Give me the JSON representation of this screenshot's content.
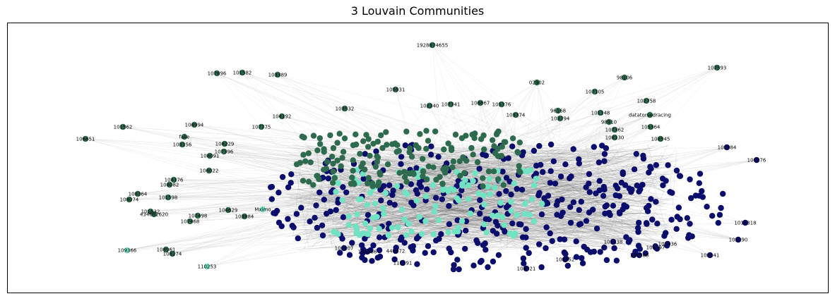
{
  "chart_data": {
    "type": "network",
    "title": "3 Louvain Communities",
    "communities": 3,
    "community_colors": [
      "#0a0d6b",
      "#2e6b4e",
      "#6fe3c2"
    ],
    "edge_color": "#cfcfcf",
    "axes": "off",
    "nodes": [
      {
        "label": "1928874655",
        "community": 1
      },
      {
        "label": "107593",
        "community": 1
      },
      {
        "label": "98106",
        "community": 1
      },
      {
        "label": "107896",
        "community": 1
      },
      {
        "label": "101582",
        "community": 1
      },
      {
        "label": "103389",
        "community": 1
      },
      {
        "label": "105931",
        "community": 1
      },
      {
        "label": "02902",
        "community": 1
      },
      {
        "label": "107105",
        "community": 1
      },
      {
        "label": "102340",
        "community": 1
      },
      {
        "label": "107741",
        "community": 1
      },
      {
        "label": "106667",
        "community": 1
      },
      {
        "label": "105376",
        "community": 1
      },
      {
        "label": "102758",
        "community": 1
      },
      {
        "label": "96168",
        "community": 1
      },
      {
        "label": "103374",
        "community": 1
      },
      {
        "label": "101148",
        "community": 1
      },
      {
        "label": "103794",
        "community": 1
      },
      {
        "label": "datatorsedracing",
        "community": 1
      },
      {
        "label": "104192",
        "community": 1
      },
      {
        "label": "103532",
        "community": 1
      },
      {
        "label": "104994",
        "community": 1
      },
      {
        "label": "101562",
        "community": 1
      },
      {
        "label": "106651",
        "community": 1
      },
      {
        "label": "fake",
        "community": 1
      },
      {
        "label": "103156",
        "community": 1
      },
      {
        "label": "107775",
        "community": 1
      },
      {
        "label": "106229",
        "community": 1
      },
      {
        "label": "107396",
        "community": 1
      },
      {
        "label": "108091",
        "community": 1
      },
      {
        "label": "106022",
        "community": 1
      },
      {
        "label": "104176",
        "community": 1
      },
      {
        "label": "108082",
        "community": 1
      },
      {
        "label": "108364",
        "community": 1
      },
      {
        "label": "108074",
        "community": 1
      },
      {
        "label": "101598",
        "community": 1
      },
      {
        "label": "101632",
        "community": 1
      },
      {
        "label": "434662620",
        "community": 1
      },
      {
        "label": "107498",
        "community": 1
      },
      {
        "label": "107468",
        "community": 1
      },
      {
        "label": "104629",
        "community": 1
      },
      {
        "label": "103884",
        "community": 1
      },
      {
        "label": "109366",
        "community": 2
      },
      {
        "label": "108961",
        "community": 1
      },
      {
        "label": "108274",
        "community": 1
      },
      {
        "label": "110253",
        "community": 2
      },
      {
        "label": "Mximo",
        "community": 2
      },
      {
        "label": "108545",
        "community": 1
      },
      {
        "label": "105364",
        "community": 1
      },
      {
        "label": "108130",
        "community": 1
      },
      {
        "label": "107362",
        "community": 1
      },
      {
        "label": "98910",
        "community": 1
      },
      {
        "label": "105384",
        "community": 0
      },
      {
        "label": "106176",
        "community": 0
      },
      {
        "label": "1018318",
        "community": 0
      },
      {
        "label": "108141",
        "community": 0
      },
      {
        "label": "108588",
        "community": 0
      },
      {
        "label": "100597",
        "community": 0
      },
      {
        "label": "108621",
        "community": 0
      },
      {
        "label": "111591",
        "community": 0
      },
      {
        "label": "441672",
        "community": 0
      },
      {
        "label": "100207",
        "community": 0
      },
      {
        "label": "100286",
        "community": 0
      },
      {
        "label": "108552",
        "community": 0
      },
      {
        "label": "101190",
        "community": 0
      },
      {
        "label": "101138",
        "community": 0
      },
      {
        "label": "105436",
        "community": 0
      }
    ]
  }
}
